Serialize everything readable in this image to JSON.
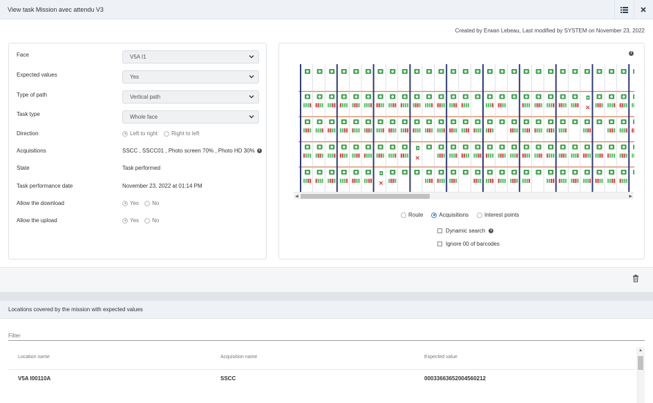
{
  "header": {
    "title": "View task Mission avec attendu V3",
    "list_icon": "list-icon",
    "close_icon": "close-icon"
  },
  "created_by": "Created by Erwan Lebeau, Last modified by SYSTEM on November 23, 2022",
  "form": {
    "face": {
      "label": "Face",
      "value": "V5A I1"
    },
    "expected_values": {
      "label": "Expected values",
      "value": "Yes"
    },
    "type_of_path": {
      "label": "Type of path",
      "value": "Vertical path"
    },
    "task_type": {
      "label": "Task type",
      "value": "Whole face"
    },
    "direction": {
      "label": "Direction",
      "option1": "Left to right",
      "option2": "Right to left"
    },
    "acquisitions": {
      "label": "Acquisitions",
      "value": "SSCC , SSCC01 , Photo screen 70% , Photo HD 30%"
    },
    "state": {
      "label": "State",
      "value": "Task performed"
    },
    "performance_date": {
      "label": "Task performance date",
      "value": "November 23, 2022 at 01:14 PM"
    },
    "allow_download": {
      "label": "Allow the download",
      "yes": "Yes",
      "no": "No"
    },
    "allow_upload": {
      "label": "Allow the upload",
      "yes": "Yes",
      "no": "No"
    }
  },
  "view_options": {
    "route": "Route",
    "acquisitions": "Acquisitions",
    "interest_points": "Interest points",
    "selected": "Acquisitions",
    "dynamic_search": "Dynamic search",
    "ignore_barcodes": "Ignore 00 of barcodes"
  },
  "colors": {
    "camera": "#3aa64a",
    "bar_red": "#e04848",
    "bar_green": "#5cc46a",
    "upright": "#2b3a78",
    "beam": "#e07a50",
    "error": "#d62828"
  },
  "locations": {
    "title": "Locations covered by the mission with expected values",
    "filter_placeholder": "Filter",
    "columns": [
      "Location name",
      "Acquisition name",
      "Expected value"
    ],
    "rows": [
      {
        "location": "V5A I00110A",
        "acquisition": "SSCC",
        "expected": "00033663652004560212"
      }
    ]
  }
}
